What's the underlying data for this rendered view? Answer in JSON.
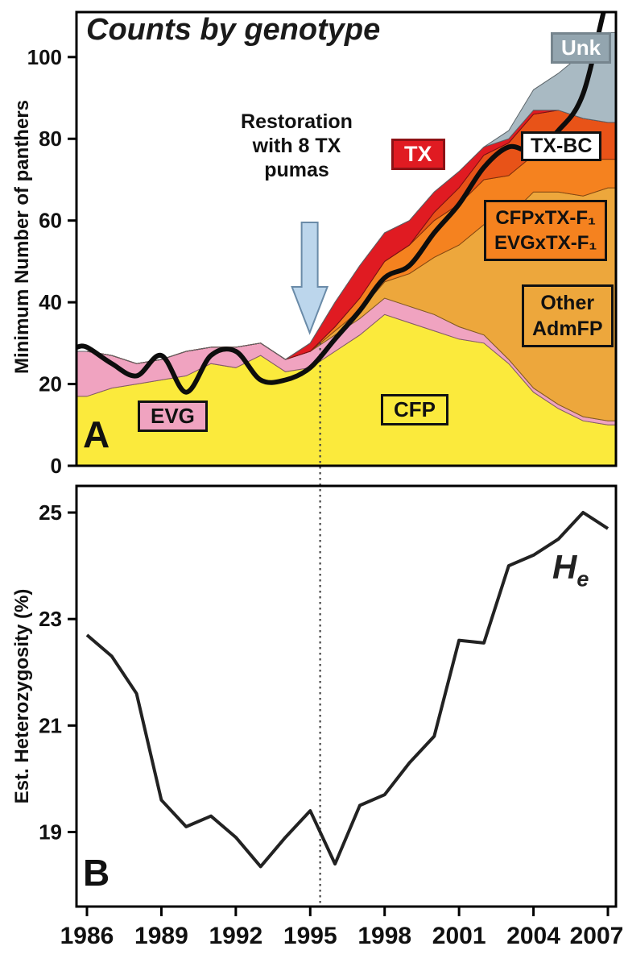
{
  "panel_a": {
    "title": "Counts by genotype",
    "y_axis_label": "Minimum Number of panthers",
    "panel_letter": "A",
    "annotation": "Restoration\nwith 8 TX\npumas",
    "legends": {
      "unk": "Unk",
      "tx": "TX",
      "txbc": "TX-BC",
      "f1": "CFPxTX-F₁\nEVGxTX-F₁",
      "admfp": "Other\nAdmFP",
      "evg": "EVG",
      "cfp": "CFP"
    }
  },
  "panel_b": {
    "y_axis_label": "Est. Heterozygosity (%)",
    "panel_letter": "B",
    "he_main": "H",
    "he_sub": "e"
  },
  "colors": {
    "cfp": "#FBEA3C",
    "evg": "#F0A3C0",
    "admfp": "#EDA73C",
    "f1": "#F5821F",
    "txbc": "#E85318",
    "tx": "#E01B22",
    "unk_area": "#A9BAC3",
    "unk_box": "#93A5AF",
    "txbc_box": "#FFFFFF",
    "arrow_fill": "#BCD6EC",
    "arrow_stroke": "#6A8BA8",
    "total_line": "#0D0D0D",
    "het_line": "#222222"
  },
  "chart_data": [
    {
      "type": "area",
      "stacked": true,
      "title": "Counts by genotype",
      "ylabel": "Minimum Number of panthers",
      "xlabel": "",
      "x": [
        1986,
        1987,
        1988,
        1989,
        1990,
        1991,
        1992,
        1993,
        1994,
        1995,
        1996,
        1997,
        1998,
        1999,
        2000,
        2001,
        2002,
        2003,
        2004,
        2005,
        2006,
        2007
      ],
      "ylim": [
        0,
        111
      ],
      "y_ticks": [
        0,
        20,
        40,
        60,
        80,
        100
      ],
      "x_ticks": [
        1986,
        1989,
        1992,
        1995,
        1998,
        2001,
        2004,
        2007
      ],
      "event_year": 1995.4,
      "grid": false,
      "legend_position": "inside",
      "series": [
        {
          "name": "CFP",
          "color": "#FBEA3C",
          "values": [
            17,
            19,
            20,
            21,
            22,
            25,
            24,
            27,
            23,
            24,
            28,
            32,
            37,
            35,
            33,
            31,
            30,
            25,
            18,
            14,
            11,
            10
          ]
        },
        {
          "name": "EVG",
          "color": "#F0A3C0",
          "values": [
            11,
            8,
            5,
            5,
            6,
            4,
            5,
            3,
            3,
            4,
            4,
            4,
            4,
            4,
            4,
            3,
            2,
            1,
            1,
            1,
            1,
            1
          ]
        },
        {
          "name": "Other AdmFP",
          "color": "#EDA73C",
          "values": [
            0,
            0,
            0,
            0,
            0,
            0,
            0,
            0,
            0,
            0,
            1,
            2,
            4,
            8,
            14,
            20,
            27,
            35,
            48,
            52,
            54,
            57
          ]
        },
        {
          "name": "CFPxTX-F1 / EVGxTX-F1",
          "color": "#F5821F",
          "values": [
            0,
            0,
            0,
            0,
            0,
            0,
            0,
            0,
            0,
            0,
            1,
            3,
            5,
            7,
            9,
            10,
            11,
            10,
            9,
            9,
            9,
            7
          ]
        },
        {
          "name": "TX-BC",
          "color": "#E85318",
          "values": [
            0,
            0,
            0,
            0,
            0,
            0,
            0,
            0,
            0,
            0,
            0,
            0,
            0,
            0,
            2,
            4,
            6,
            8,
            10,
            11,
            10,
            9
          ]
        },
        {
          "name": "TX",
          "color": "#E01B22",
          "values": [
            0,
            0,
            0,
            0,
            0,
            0,
            0,
            0,
            0,
            2,
            6,
            8,
            7,
            6,
            5,
            4,
            2,
            1,
            1,
            0,
            0,
            0
          ]
        },
        {
          "name": "Unk",
          "color": "#A9BAC3",
          "values": [
            0,
            0,
            0,
            0,
            0,
            0,
            0,
            0,
            0,
            0,
            0,
            0,
            0,
            0,
            0,
            0,
            0,
            2,
            5,
            9,
            16,
            22
          ]
        }
      ],
      "total_line": {
        "name": "Minimum number of panthers",
        "color": "#0D0D0D",
        "values": [
          29,
          25,
          22,
          27,
          18,
          27,
          28,
          21,
          21,
          24,
          31,
          38,
          46,
          49,
          57,
          64,
          73,
          78,
          77,
          82,
          91,
          115
        ]
      }
    },
    {
      "type": "line",
      "title": "",
      "ylabel": "Est. Heterozygosity (%)",
      "xlabel": "",
      "x": [
        1986,
        1987,
        1988,
        1989,
        1990,
        1991,
        1992,
        1993,
        1994,
        1995,
        1996,
        1997,
        1998,
        1999,
        2000,
        2001,
        2002,
        2003,
        2004,
        2005,
        2006,
        2007
      ],
      "values": [
        22.7,
        22.3,
        21.6,
        19.6,
        19.1,
        19.3,
        18.9,
        18.35,
        18.9,
        19.4,
        18.4,
        19.5,
        19.7,
        20.3,
        20.8,
        22.6,
        22.55,
        24.0,
        24.2,
        24.5,
        25.0,
        24.7
      ],
      "ylim": [
        17.6,
        25.5
      ],
      "y_ticks": [
        19,
        21,
        23,
        25
      ],
      "x_ticks": [
        1986,
        1989,
        1992,
        1995,
        1998,
        2001,
        2004,
        2007
      ],
      "series_label": "He",
      "grid": false
    }
  ]
}
